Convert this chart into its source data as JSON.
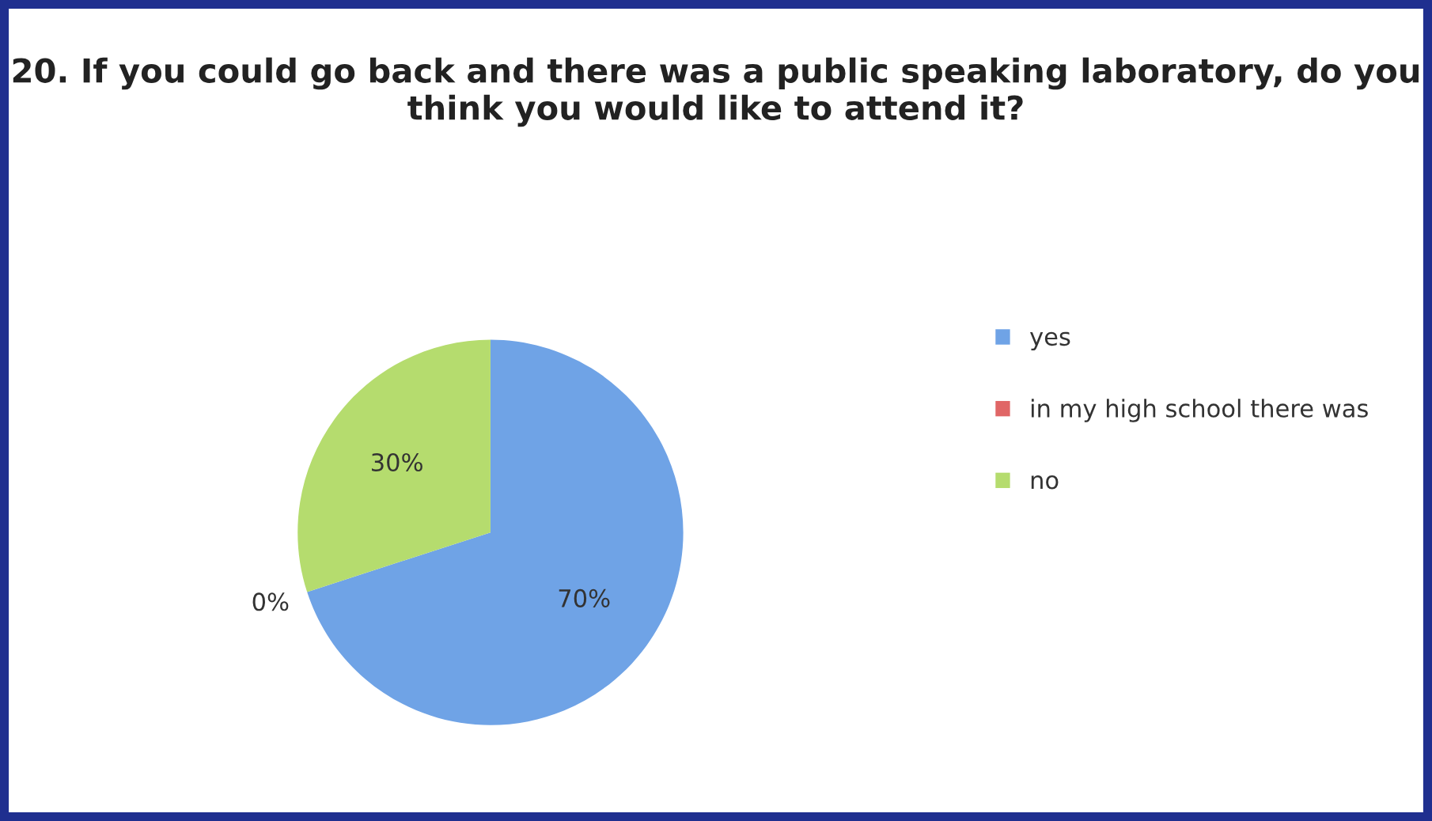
{
  "chart_data": {
    "type": "pie",
    "title": "20. If you could go back and there was a public speaking laboratory, do you think you would like to attend it?",
    "categories": [
      "yes",
      "in my high school there was",
      "no"
    ],
    "values": [
      70,
      0,
      30
    ],
    "colors": [
      "#6fa3e6",
      "#e06666",
      "#b5dc6e"
    ],
    "value_labels": [
      "70%",
      "0%",
      "30%"
    ],
    "legend": "right"
  }
}
